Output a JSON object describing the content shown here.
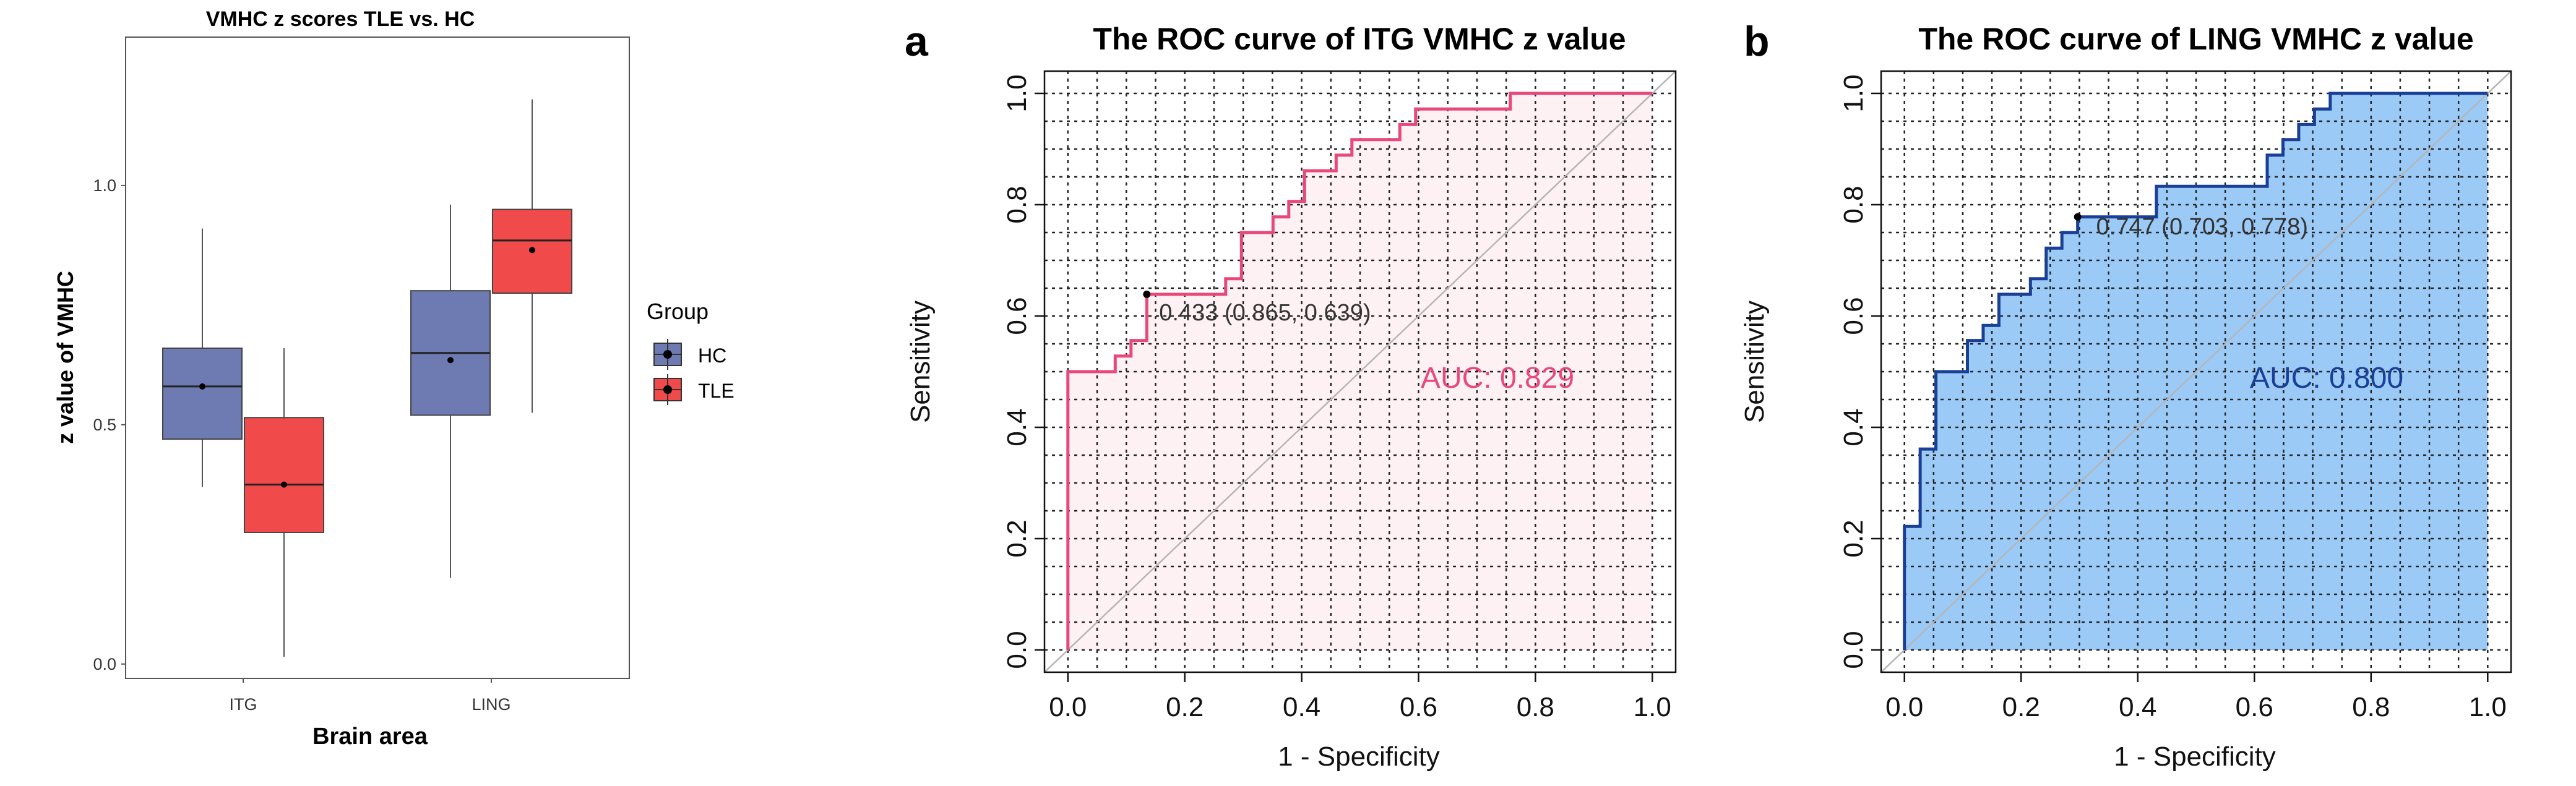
{
  "chart_data": [
    {
      "type": "box",
      "title": "VMHC z scores TLE vs. HC",
      "xlabel": "Brain area",
      "ylabel": "z value of VMHC",
      "categories": [
        "ITG",
        "LING"
      ],
      "ylim": [
        -0.03,
        1.31
      ],
      "yticks": [
        "0.0",
        "0.5",
        "1.0"
      ],
      "grid": false,
      "legend": {
        "title": "Group",
        "position": "right"
      },
      "series": [
        {
          "name": "HC",
          "color": "#6e7bb3",
          "boxes": [
            {
              "min": 0.37,
              "q1": 0.47,
              "median": 0.58,
              "q3": 0.66,
              "max": 0.91,
              "mean": 0.58
            },
            {
              "min": 0.18,
              "q1": 0.52,
              "median": 0.65,
              "q3": 0.78,
              "max": 0.96,
              "mean": 0.635
            }
          ]
        },
        {
          "name": "TLE",
          "color": "#f04a4a",
          "boxes": [
            {
              "min": 0.015,
              "q1": 0.275,
              "median": 0.375,
              "q3": 0.515,
              "max": 0.66,
              "mean": 0.375
            },
            {
              "min": 0.525,
              "q1": 0.775,
              "median": 0.885,
              "q3": 0.95,
              "max": 1.18,
              "mean": 0.865
            }
          ]
        }
      ]
    },
    {
      "type": "line",
      "panel_label": "a",
      "title": "The ROC curve of ITG VMHC z value",
      "xlabel": "1 - Specificity",
      "ylabel": "Sensitivity",
      "xlim": [
        -0.04,
        1.04
      ],
      "ylim": [
        -0.04,
        1.04
      ],
      "xticks": [
        "0.0",
        "0.2",
        "0.4",
        "0.6",
        "0.8",
        "1.0"
      ],
      "yticks": [
        "0.0",
        "0.2",
        "0.4",
        "0.6",
        "0.8",
        "1.0"
      ],
      "grid": true,
      "line_color": "#e8497a",
      "fill_color": "#fdf1f4",
      "auc_label": "AUC: 0.829",
      "threshold": {
        "x": 0.135,
        "y": 0.639,
        "label": "0.433 (0.865, 0.639)"
      },
      "x": [
        0,
        0,
        0.081,
        0.081,
        0.108,
        0.108,
        0.135,
        0.135,
        0.27,
        0.27,
        0.297,
        0.297,
        0.351,
        0.351,
        0.378,
        0.378,
        0.405,
        0.405,
        0.459,
        0.459,
        0.486,
        0.486,
        0.568,
        0.568,
        0.595,
        0.595,
        0.757,
        0.757,
        1
      ],
      "y": [
        0,
        0.5,
        0.5,
        0.528,
        0.528,
        0.556,
        0.556,
        0.639,
        0.639,
        0.667,
        0.667,
        0.75,
        0.75,
        0.778,
        0.778,
        0.806,
        0.806,
        0.861,
        0.861,
        0.889,
        0.889,
        0.917,
        0.917,
        0.944,
        0.944,
        0.972,
        0.972,
        1,
        1
      ]
    },
    {
      "type": "line",
      "panel_label": "b",
      "title": "The ROC curve of LING VMHC z value",
      "xlabel": "1 - Specificity",
      "ylabel": "Sensitivity",
      "xlim": [
        -0.04,
        1.04
      ],
      "ylim": [
        -0.04,
        1.04
      ],
      "xticks": [
        "0.0",
        "0.2",
        "0.4",
        "0.6",
        "0.8",
        "1.0"
      ],
      "yticks": [
        "0.0",
        "0.2",
        "0.4",
        "0.6",
        "0.8",
        "1.0"
      ],
      "grid": true,
      "line_color": "#1a3f96",
      "fill_color": "#9ccaf6",
      "auc_label": "AUC: 0.800",
      "threshold": {
        "x": 0.297,
        "y": 0.778,
        "label": "0.747 (0.703, 0.778)"
      },
      "x": [
        0,
        0,
        0.027,
        0.027,
        0.054,
        0.054,
        0.108,
        0.108,
        0.135,
        0.135,
        0.162,
        0.162,
        0.216,
        0.216,
        0.243,
        0.243,
        0.27,
        0.27,
        0.297,
        0.297,
        0.432,
        0.432,
        0.622,
        0.622,
        0.649,
        0.649,
        0.676,
        0.676,
        0.703,
        0.703,
        0.73,
        0.73,
        1
      ],
      "y": [
        0,
        0.222,
        0.222,
        0.361,
        0.361,
        0.5,
        0.5,
        0.556,
        0.556,
        0.583,
        0.583,
        0.639,
        0.639,
        0.667,
        0.667,
        0.722,
        0.722,
        0.75,
        0.75,
        0.778,
        0.778,
        0.833,
        0.833,
        0.889,
        0.889,
        0.917,
        0.917,
        0.944,
        0.944,
        0.972,
        0.972,
        1,
        1
      ]
    }
  ]
}
